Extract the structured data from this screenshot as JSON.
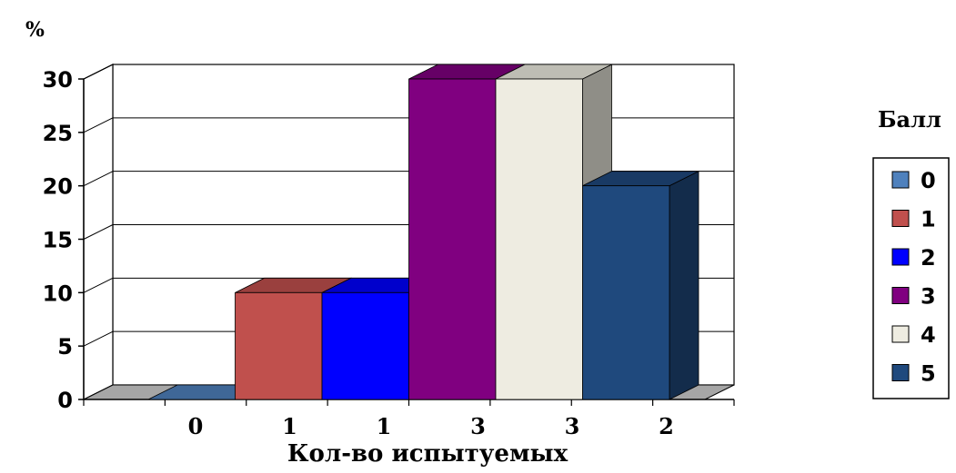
{
  "chart_data": {
    "type": "bar",
    "title": "",
    "ylabel": "%",
    "xlabel": "Кол-во испытуемых",
    "ylim": [
      0,
      30
    ],
    "yticks": [
      0,
      5,
      10,
      15,
      20,
      25,
      30
    ],
    "categories": [
      "0",
      "1",
      "1",
      "3",
      "3",
      "2"
    ],
    "values": [
      0,
      10,
      10,
      30,
      30,
      20
    ],
    "legend": {
      "title": "Балл",
      "position": "right",
      "entries": [
        "0",
        "1",
        "2",
        "3",
        "4",
        "5"
      ]
    },
    "colors": [
      "#4f81bd",
      "#c0504d",
      "#0000ff",
      "#800080",
      "#eeece1",
      "#1f497d"
    ],
    "grid": true,
    "three_d": true
  }
}
